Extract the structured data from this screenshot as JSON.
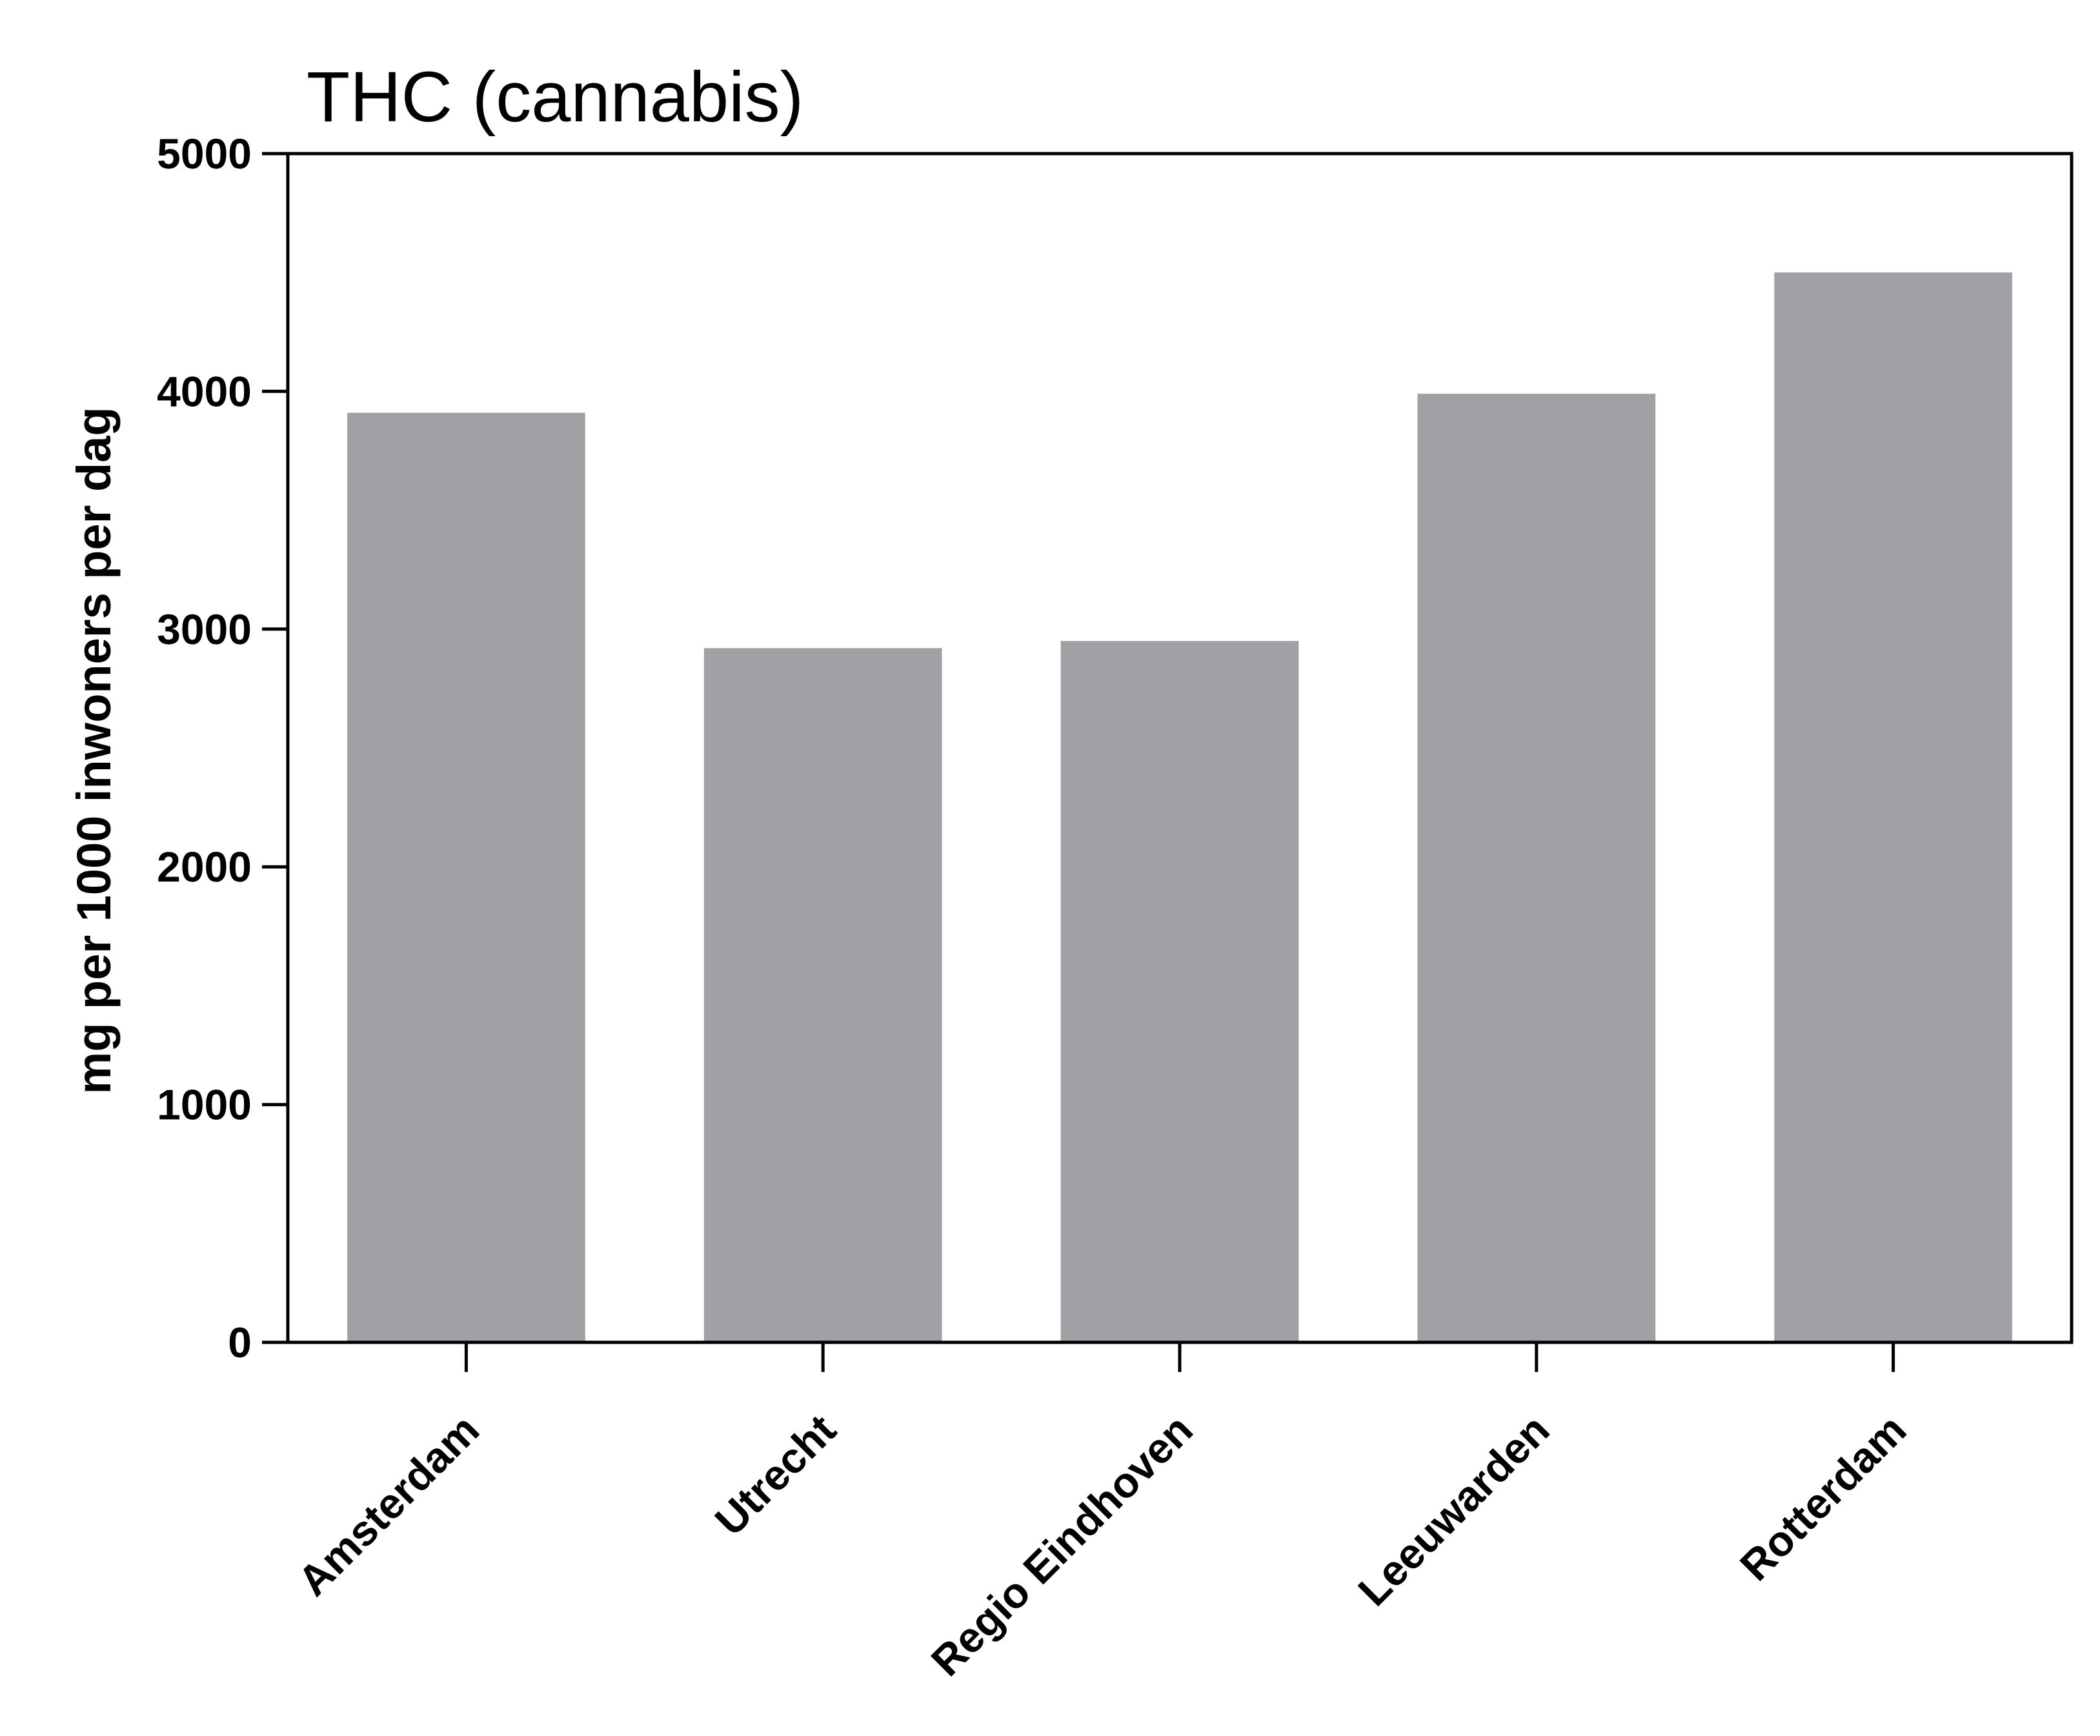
{
  "chart_data": {
    "type": "bar",
    "title": "THC (cannabis)",
    "xlabel": "",
    "ylabel": "mg per 1000 inwoners per dag",
    "categories": [
      "Amsterdam",
      "Utrecht",
      "Regio Eindhoven",
      "Leeuwarden",
      "Rotterdam"
    ],
    "values": [
      3910,
      2920,
      2950,
      3990,
      4500
    ],
    "ylim": [
      0,
      5000
    ],
    "yticks": [
      "0",
      "1000",
      "2000",
      "3000",
      "4000",
      "5000"
    ],
    "grid": false,
    "legend": "none",
    "bar_color": "#a1a0a4",
    "axis_color": "#000000"
  }
}
